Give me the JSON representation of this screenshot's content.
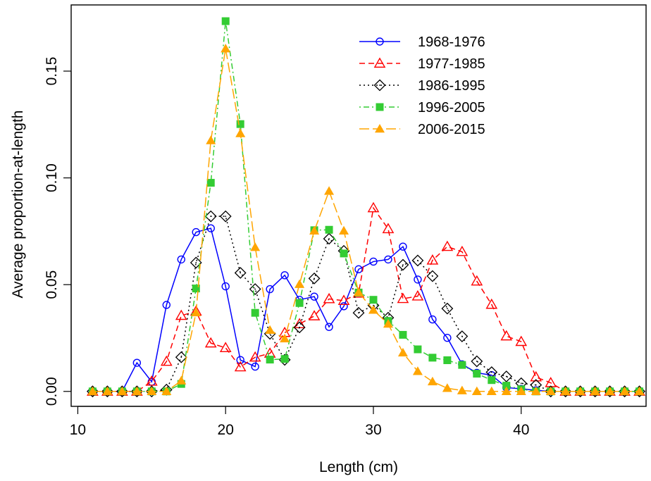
{
  "chart_data": {
    "type": "line",
    "title": "",
    "xlabel": "Length (cm)",
    "ylabel": "Average proportion-at-length",
    "xlim": [
      9.55,
      48.45
    ],
    "ylim": [
      -0.007,
      0.181
    ],
    "xticks": [
      10,
      20,
      30,
      40
    ],
    "xtick_labels": [
      "10",
      "20",
      "30",
      "40"
    ],
    "yticks": [
      0.0,
      0.05,
      0.1,
      0.15
    ],
    "ytick_labels": [
      "0.00",
      "0.05",
      "0.10",
      "0.15"
    ],
    "grid": false,
    "legend_position": "top-right",
    "x": [
      11,
      12,
      13,
      14,
      15,
      16,
      17,
      18,
      19,
      20,
      21,
      22,
      23,
      24,
      25,
      26,
      27,
      28,
      29,
      30,
      31,
      32,
      33,
      34,
      35,
      36,
      37,
      38,
      39,
      40,
      41,
      42,
      43,
      44,
      45,
      46,
      47,
      48
    ],
    "series": [
      {
        "name": "1968-1976",
        "color": "#0000ff",
        "marker": "open-circle",
        "line": "solid",
        "values": [
          0,
          0,
          0,
          0.0134,
          0.0045,
          0.0405,
          0.0618,
          0.0746,
          0.0764,
          0.0492,
          0.0147,
          0.0116,
          0.0479,
          0.0544,
          0.0429,
          0.0444,
          0.0302,
          0.0399,
          0.0572,
          0.0608,
          0.0618,
          0.0678,
          0.0524,
          0.0337,
          0.0251,
          0.0127,
          0.0087,
          0.0076,
          0.0018,
          0.0012,
          0.0005,
          0,
          0,
          0,
          0,
          0,
          0,
          0
        ]
      },
      {
        "name": "1977-1985",
        "color": "#ff0000",
        "marker": "open-triangle",
        "line": "dashed",
        "values": [
          0,
          0,
          0,
          0,
          0.0047,
          0.014,
          0.0355,
          0.0375,
          0.0226,
          0.0204,
          0.0114,
          0.016,
          0.0178,
          0.0275,
          0.0316,
          0.0353,
          0.0433,
          0.0425,
          0.0459,
          0.0859,
          0.0761,
          0.0434,
          0.0446,
          0.0614,
          0.0678,
          0.0654,
          0.0516,
          0.0407,
          0.0259,
          0.0233,
          0.0067,
          0.004,
          0,
          0,
          0,
          0,
          0,
          0
        ]
      },
      {
        "name": "1986-1995",
        "color": "#000000",
        "marker": "open-diamond",
        "line": "dotted",
        "values": [
          0,
          0,
          0,
          0,
          0,
          0.0008,
          0.016,
          0.0603,
          0.082,
          0.082,
          0.0555,
          0.0479,
          0.027,
          0.0148,
          0.03,
          0.0529,
          0.0715,
          0.0658,
          0.0368,
          0.0403,
          0.0345,
          0.0593,
          0.0613,
          0.054,
          0.0388,
          0.0258,
          0.0141,
          0.009,
          0.007,
          0.0038,
          0.003,
          0,
          0,
          0,
          0,
          0,
          0,
          0
        ]
      },
      {
        "name": "1996-2005",
        "color": "#33cc33",
        "marker": "filled-square",
        "line": "dashdot",
        "values": [
          0,
          0,
          0,
          0,
          0,
          0,
          0.0035,
          0.0482,
          0.0977,
          0.1734,
          0.1252,
          0.0368,
          0.0149,
          0.0152,
          0.0414,
          0.0755,
          0.0757,
          0.0646,
          0.0463,
          0.0429,
          0.033,
          0.0265,
          0.0197,
          0.0158,
          0.0146,
          0.0124,
          0.0083,
          0.0053,
          0.0027,
          0.001,
          0,
          0,
          0,
          0,
          0,
          0,
          0,
          0
        ]
      },
      {
        "name": "2006-2015",
        "color": "#ffa500",
        "marker": "filled-triangle",
        "line": "longdash",
        "values": [
          0,
          0,
          0,
          0,
          0,
          0,
          0.005,
          0.0369,
          0.1175,
          0.1605,
          0.1208,
          0.0675,
          0.0287,
          0.0247,
          0.0502,
          0.0752,
          0.0938,
          0.0752,
          0.0464,
          0.0381,
          0.0316,
          0.0181,
          0.0094,
          0.0046,
          0.0015,
          0.0004,
          0,
          0,
          0,
          0,
          0,
          0,
          0,
          0,
          0,
          0,
          0,
          0
        ]
      }
    ]
  }
}
